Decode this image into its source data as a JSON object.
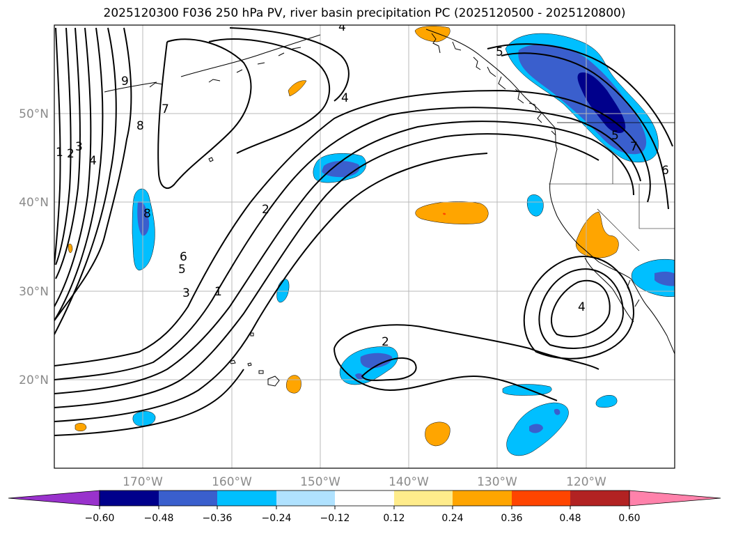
{
  "title": "2025120300 F036 250 hPa PV, river basin precipitation PC (2025120500 - 2025120800)",
  "lat_labels": [
    "50°N",
    "40°N",
    "30°N",
    "20°N"
  ],
  "lon_labels": [
    "170°W",
    "160°W",
    "150°W",
    "140°W",
    "130°W",
    "120°W"
  ],
  "contour_labels": [
    "9",
    "7",
    "8",
    "1",
    "2",
    "3",
    "4",
    "4",
    "5",
    "8",
    "6",
    "5",
    "3",
    "1",
    "2",
    "2",
    "4",
    "5",
    "6",
    "7",
    "4"
  ],
  "colorbar": {
    "ticks": [
      "−0.60",
      "−0.48",
      "−0.36",
      "−0.24",
      "−0.12",
      "0.12",
      "0.24",
      "0.36",
      "0.48",
      "0.60"
    ],
    "colors": [
      "#9932cc",
      "#00008b",
      "#3a5fcd",
      "#00bfff",
      "#b0e2ff",
      "#ffffff",
      "#ffec8b",
      "#ffa500",
      "#ff4500",
      "#b22222",
      "#ff82ab"
    ]
  },
  "colors": {
    "neg_weak": "#00bfff",
    "neg_mid": "#3a5fcd",
    "neg_strong": "#00008b",
    "pos_weak": "#ffa500",
    "pos_mid": "#ff4500"
  }
}
